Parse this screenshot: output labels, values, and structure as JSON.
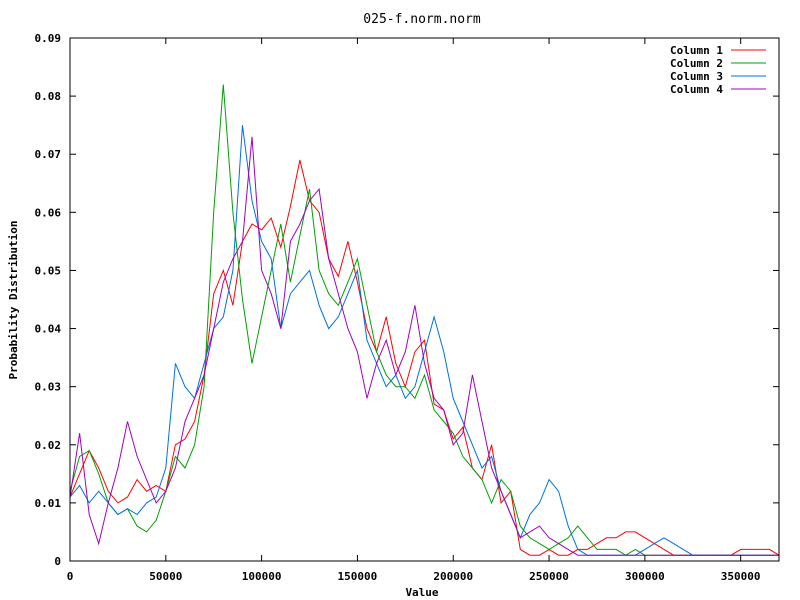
{
  "chart_data": {
    "type": "line",
    "title": "025-f.norm.norm",
    "xlabel": "Value",
    "ylabel": "Probability Distribution",
    "xlim": [
      0,
      370000
    ],
    "ylim": [
      0,
      0.09
    ],
    "x_ticks": [
      0,
      50000,
      100000,
      150000,
      200000,
      250000,
      300000,
      350000
    ],
    "x_tick_labels": [
      "0",
      "50000",
      "100000",
      "150000",
      "200000",
      "250000",
      "300000",
      "350000"
    ],
    "y_ticks": [
      0,
      0.01,
      0.02,
      0.03,
      0.04,
      0.05,
      0.06,
      0.07,
      0.08,
      0.09
    ],
    "y_tick_labels": [
      "0",
      "0.01",
      "0.02",
      "0.03",
      "0.04",
      "0.05",
      "0.06",
      "0.07",
      "0.08",
      "0.09"
    ],
    "grid": false,
    "legend": "top-right",
    "series": [
      {
        "name": "Column 1",
        "color": "#ff0000",
        "x": [
          0,
          5000,
          10000,
          15000,
          20000,
          25000,
          30000,
          35000,
          40000,
          45000,
          50000,
          55000,
          60000,
          65000,
          70000,
          75000,
          80000,
          85000,
          90000,
          95000,
          100000,
          105000,
          110000,
          115000,
          120000,
          125000,
          130000,
          135000,
          140000,
          145000,
          150000,
          155000,
          160000,
          165000,
          170000,
          175000,
          180000,
          185000,
          190000,
          195000,
          200000,
          205000,
          210000,
          215000,
          220000,
          225000,
          230000,
          235000,
          240000,
          245000,
          250000,
          255000,
          260000,
          265000,
          270000,
          275000,
          280000,
          285000,
          290000,
          295000,
          300000,
          305000,
          310000,
          315000,
          320000,
          325000,
          330000,
          335000,
          340000,
          345000,
          350000,
          355000,
          360000,
          365000,
          370000
        ],
        "y": [
          0.011,
          0.015,
          0.019,
          0.016,
          0.012,
          0.01,
          0.011,
          0.014,
          0.012,
          0.013,
          0.012,
          0.02,
          0.021,
          0.024,
          0.032,
          0.046,
          0.05,
          0.044,
          0.055,
          0.058,
          0.057,
          0.059,
          0.054,
          0.061,
          0.069,
          0.062,
          0.06,
          0.052,
          0.049,
          0.055,
          0.048,
          0.04,
          0.036,
          0.042,
          0.034,
          0.03,
          0.036,
          0.038,
          0.027,
          0.026,
          0.021,
          0.023,
          0.016,
          0.014,
          0.02,
          0.01,
          0.012,
          0.002,
          0.001,
          0.001,
          0.002,
          0.001,
          0.001,
          0.002,
          0.002,
          0.003,
          0.004,
          0.004,
          0.005,
          0.005,
          0.004,
          0.003,
          0.002,
          0.001,
          0.001,
          0.001,
          0.001,
          0.001,
          0.001,
          0.001,
          0.002,
          0.002,
          0.002,
          0.002,
          0.001
        ]
      },
      {
        "name": "Column 2",
        "color": "#00a000",
        "x": [
          0,
          5000,
          10000,
          15000,
          20000,
          25000,
          30000,
          35000,
          40000,
          45000,
          50000,
          55000,
          60000,
          65000,
          70000,
          75000,
          80000,
          85000,
          90000,
          95000,
          100000,
          105000,
          110000,
          115000,
          120000,
          125000,
          130000,
          135000,
          140000,
          145000,
          150000,
          155000,
          160000,
          165000,
          170000,
          175000,
          180000,
          185000,
          190000,
          195000,
          200000,
          205000,
          210000,
          215000,
          220000,
          225000,
          230000,
          235000,
          240000,
          245000,
          250000,
          255000,
          260000,
          265000,
          270000,
          275000,
          280000,
          285000,
          290000,
          295000,
          300000,
          305000,
          310000,
          315000,
          320000,
          325000,
          330000,
          335000,
          340000,
          345000,
          350000,
          355000,
          360000,
          365000,
          370000
        ],
        "y": [
          0.012,
          0.018,
          0.019,
          0.015,
          0.01,
          0.008,
          0.009,
          0.006,
          0.005,
          0.007,
          0.012,
          0.018,
          0.016,
          0.02,
          0.03,
          0.06,
          0.082,
          0.06,
          0.045,
          0.034,
          0.042,
          0.05,
          0.058,
          0.048,
          0.056,
          0.064,
          0.05,
          0.046,
          0.044,
          0.048,
          0.052,
          0.044,
          0.036,
          0.032,
          0.03,
          0.03,
          0.028,
          0.032,
          0.026,
          0.024,
          0.022,
          0.018,
          0.016,
          0.014,
          0.01,
          0.014,
          0.012,
          0.006,
          0.004,
          0.003,
          0.002,
          0.003,
          0.004,
          0.006,
          0.004,
          0.002,
          0.002,
          0.002,
          0.001,
          0.002,
          0.001,
          0.001,
          0.001,
          0.001,
          0.001,
          0.001,
          0.001,
          0.001,
          0.001,
          0.001,
          0.001,
          0.001,
          0.001,
          0.001,
          0.001
        ]
      },
      {
        "name": "Column 3",
        "color": "#0070e0",
        "x": [
          0,
          5000,
          10000,
          15000,
          20000,
          25000,
          30000,
          35000,
          40000,
          45000,
          50000,
          55000,
          60000,
          65000,
          70000,
          75000,
          80000,
          85000,
          90000,
          95000,
          100000,
          105000,
          110000,
          115000,
          120000,
          125000,
          130000,
          135000,
          140000,
          145000,
          150000,
          155000,
          160000,
          165000,
          170000,
          175000,
          180000,
          185000,
          190000,
          195000,
          200000,
          205000,
          210000,
          215000,
          220000,
          225000,
          230000,
          235000,
          240000,
          245000,
          250000,
          255000,
          260000,
          265000,
          270000,
          275000,
          280000,
          285000,
          290000,
          295000,
          300000,
          305000,
          310000,
          315000,
          320000,
          325000,
          330000,
          335000,
          340000,
          345000,
          350000,
          355000,
          360000,
          365000,
          370000
        ],
        "y": [
          0.011,
          0.013,
          0.01,
          0.012,
          0.01,
          0.008,
          0.009,
          0.008,
          0.01,
          0.011,
          0.016,
          0.034,
          0.03,
          0.028,
          0.034,
          0.04,
          0.042,
          0.05,
          0.075,
          0.062,
          0.055,
          0.052,
          0.04,
          0.046,
          0.048,
          0.05,
          0.044,
          0.04,
          0.042,
          0.046,
          0.05,
          0.038,
          0.034,
          0.03,
          0.032,
          0.028,
          0.03,
          0.036,
          0.042,
          0.036,
          0.028,
          0.024,
          0.02,
          0.016,
          0.018,
          0.012,
          0.008,
          0.004,
          0.008,
          0.01,
          0.014,
          0.012,
          0.006,
          0.002,
          0.001,
          0.001,
          0.001,
          0.001,
          0.001,
          0.001,
          0.002,
          0.003,
          0.004,
          0.003,
          0.002,
          0.001,
          0.001,
          0.001,
          0.001,
          0.001,
          0.001,
          0.001,
          0.001,
          0.001,
          0.001
        ]
      },
      {
        "name": "Column 4",
        "color": "#a000c0",
        "x": [
          0,
          5000,
          10000,
          15000,
          20000,
          25000,
          30000,
          35000,
          40000,
          45000,
          50000,
          55000,
          60000,
          65000,
          70000,
          75000,
          80000,
          85000,
          90000,
          95000,
          100000,
          105000,
          110000,
          115000,
          120000,
          125000,
          130000,
          135000,
          140000,
          145000,
          150000,
          155000,
          160000,
          165000,
          170000,
          175000,
          180000,
          185000,
          190000,
          195000,
          200000,
          205000,
          210000,
          215000,
          220000,
          225000,
          230000,
          235000,
          240000,
          245000,
          250000,
          255000,
          260000,
          265000,
          270000,
          275000,
          280000,
          285000,
          290000,
          295000,
          300000,
          305000,
          310000,
          315000,
          320000,
          325000,
          330000,
          335000,
          340000,
          345000,
          350000,
          355000,
          360000,
          365000,
          370000
        ],
        "y": [
          0.011,
          0.022,
          0.008,
          0.003,
          0.01,
          0.016,
          0.024,
          0.018,
          0.014,
          0.01,
          0.012,
          0.016,
          0.024,
          0.028,
          0.032,
          0.04,
          0.048,
          0.052,
          0.055,
          0.073,
          0.05,
          0.046,
          0.04,
          0.055,
          0.058,
          0.062,
          0.064,
          0.052,
          0.046,
          0.04,
          0.036,
          0.028,
          0.034,
          0.038,
          0.032,
          0.036,
          0.044,
          0.034,
          0.028,
          0.026,
          0.02,
          0.022,
          0.032,
          0.024,
          0.016,
          0.012,
          0.008,
          0.004,
          0.005,
          0.006,
          0.004,
          0.003,
          0.002,
          0.001,
          0.001,
          0.001,
          0.001,
          0.001,
          0.001,
          0.001,
          0.001,
          0.001,
          0.001,
          0.001,
          0.001,
          0.001,
          0.001,
          0.001,
          0.001,
          0.001,
          0.001,
          0.001,
          0.001,
          0.001,
          0.001
        ]
      }
    ]
  }
}
